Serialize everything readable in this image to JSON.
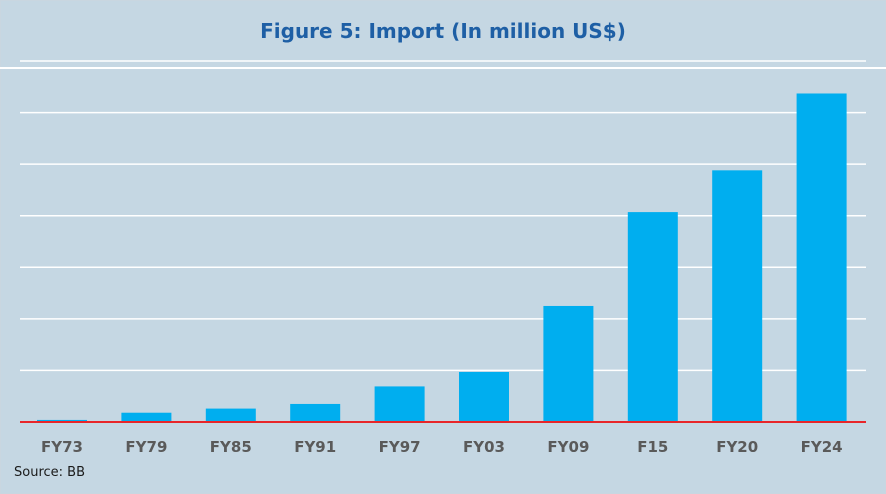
{
  "chart_data": {
    "type": "bar",
    "title": "Figure 5: Import (In million US$)",
    "xlabel": "",
    "ylabel": "",
    "categories": [
      "FY73",
      "FY79",
      "FY85",
      "FY91",
      "FY97",
      "FY03",
      "FY09",
      "F15",
      "FY20",
      "FY24"
    ],
    "values": [
      400,
      1800,
      2600,
      3500,
      6900,
      9700,
      22500,
      40700,
      48800,
      63700
    ],
    "ylim": [
      0,
      70000
    ],
    "gridlines": [
      10000,
      20000,
      30000,
      40000,
      50000,
      60000,
      70000
    ],
    "grid": true,
    "legend": "none",
    "bar_color": "#00aeef",
    "baseline_color": "#e8262a",
    "source": "Source: BB"
  }
}
